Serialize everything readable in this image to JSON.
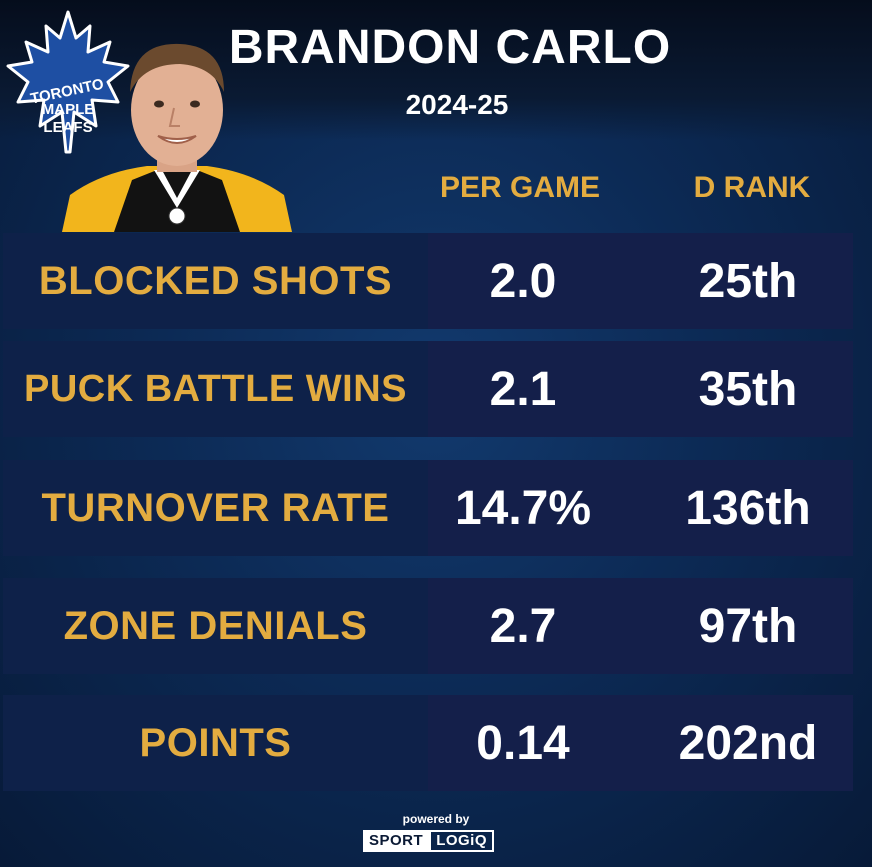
{
  "header": {
    "player_name": "BRANDON CARLO",
    "season": "2024-25",
    "logo_text": [
      "TORONTO",
      "MAPLE",
      "LEAFS"
    ]
  },
  "columns": {
    "per_game": "PER GAME",
    "rank": "D RANK"
  },
  "rows": [
    {
      "label": "BLOCKED SHOTS",
      "per_game": "2.0",
      "rank": "25th"
    },
    {
      "label": "PUCK BATTLE WINS",
      "per_game": "2.1",
      "rank": "35th"
    },
    {
      "label": "TURNOVER RATE",
      "per_game": "14.7%",
      "rank": "136th"
    },
    {
      "label": "ZONE DENIALS",
      "per_game": "2.7",
      "rank": "97th"
    },
    {
      "label": "POINTS",
      "per_game": "0.14",
      "rank": "202nd"
    }
  ],
  "footer": {
    "powered_by": "powered by",
    "brand_left": "SPORT",
    "brand_right": "LOGiQ"
  },
  "colors": {
    "gold": "#e3ac40",
    "label_bg": "#0e2149",
    "value_bg": "#141f4a",
    "leafs_blue": "#1e4fa3"
  },
  "icons": [
    "maple-leaf-logo",
    "player-headshot"
  ]
}
